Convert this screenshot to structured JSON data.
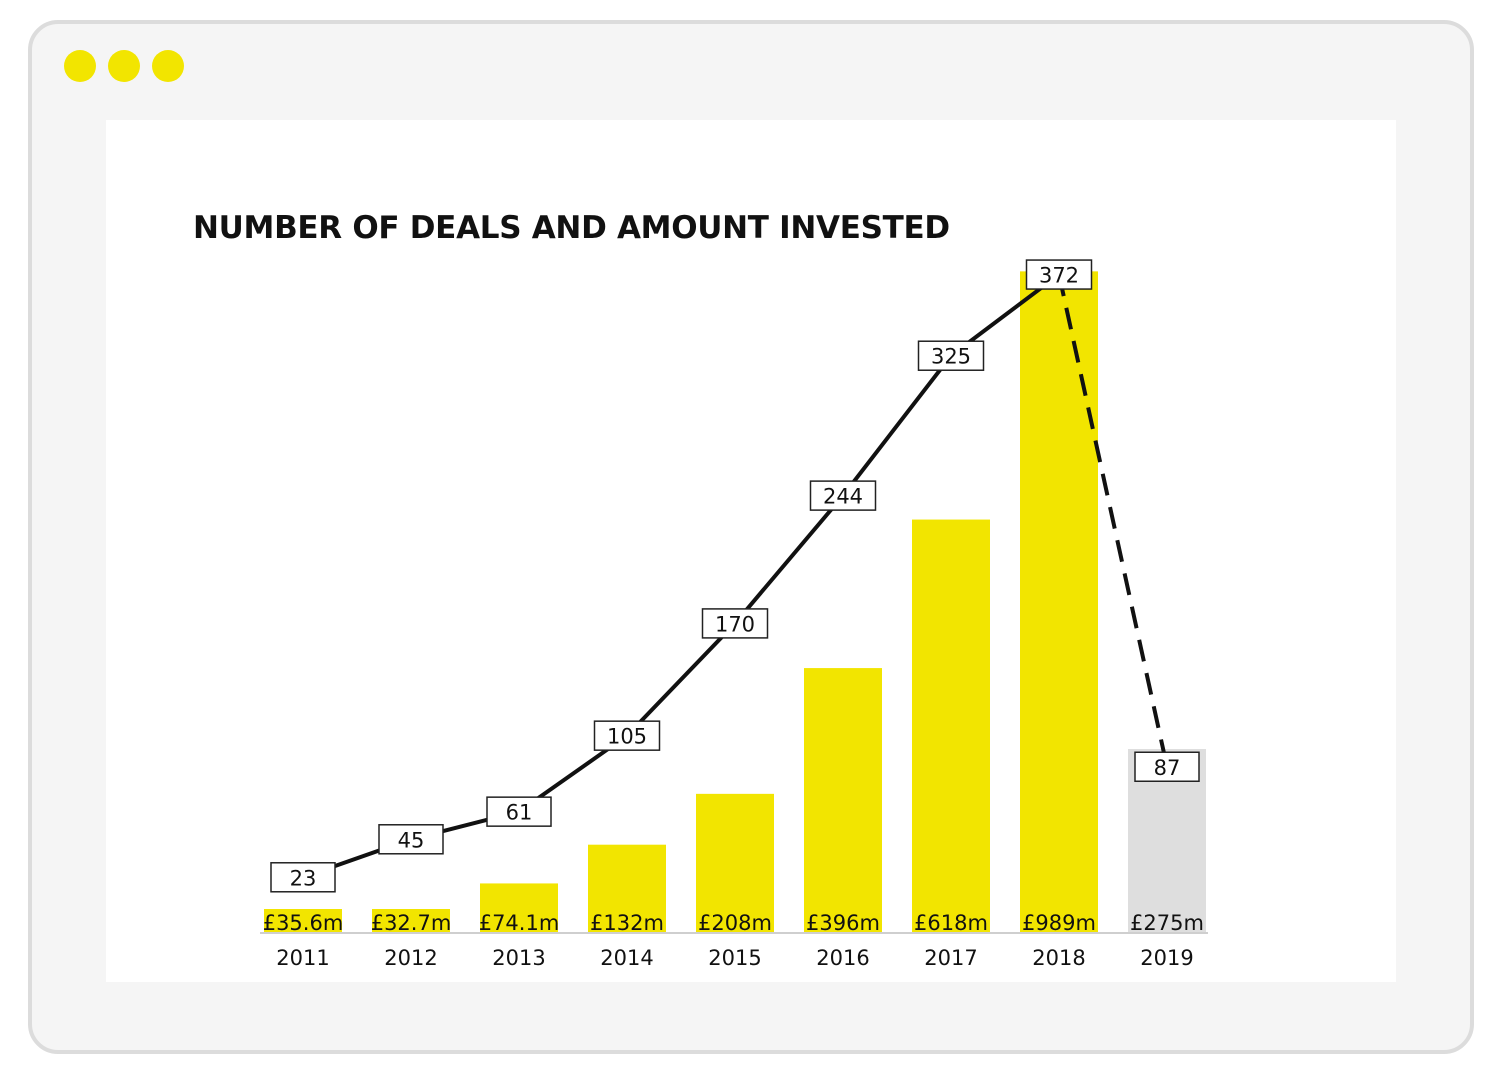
{
  "window": {
    "controls": [
      "dot",
      "dot",
      "dot"
    ],
    "accent_color": "#f2e500"
  },
  "chart_data": {
    "type": "bar",
    "title": "NUMBER OF DEALS AND AMOUNT INVESTED",
    "categories": [
      "2011",
      "2012",
      "2013",
      "2014",
      "2015",
      "2016",
      "2017",
      "2018",
      "2019"
    ],
    "series": [
      {
        "kind": "bar",
        "values": [
          35.6,
          32.7,
          74.1,
          132,
          208,
          396,
          618,
          989,
          275
        ],
        "labels": [
          "£35.6m",
          "£32.7m",
          "£74.1m",
          "£132m",
          "£208m",
          "£396m",
          "£618m",
          "£989m",
          "£275m"
        ],
        "colors": [
          "#f2e500",
          "#f2e500",
          "#f2e500",
          "#f2e500",
          "#f2e500",
          "#f2e500",
          "#f2e500",
          "#f2e500",
          "#dedede"
        ]
      },
      {
        "kind": "line",
        "values": [
          23,
          45,
          61,
          105,
          170,
          244,
          325,
          372,
          87
        ],
        "labels": [
          "23",
          "45",
          "61",
          "105",
          "170",
          "244",
          "325",
          "372",
          "87"
        ],
        "dashed_last_segment": true
      }
    ],
    "xlabel": "",
    "ylabel": "",
    "grid": false,
    "legend": "none"
  }
}
